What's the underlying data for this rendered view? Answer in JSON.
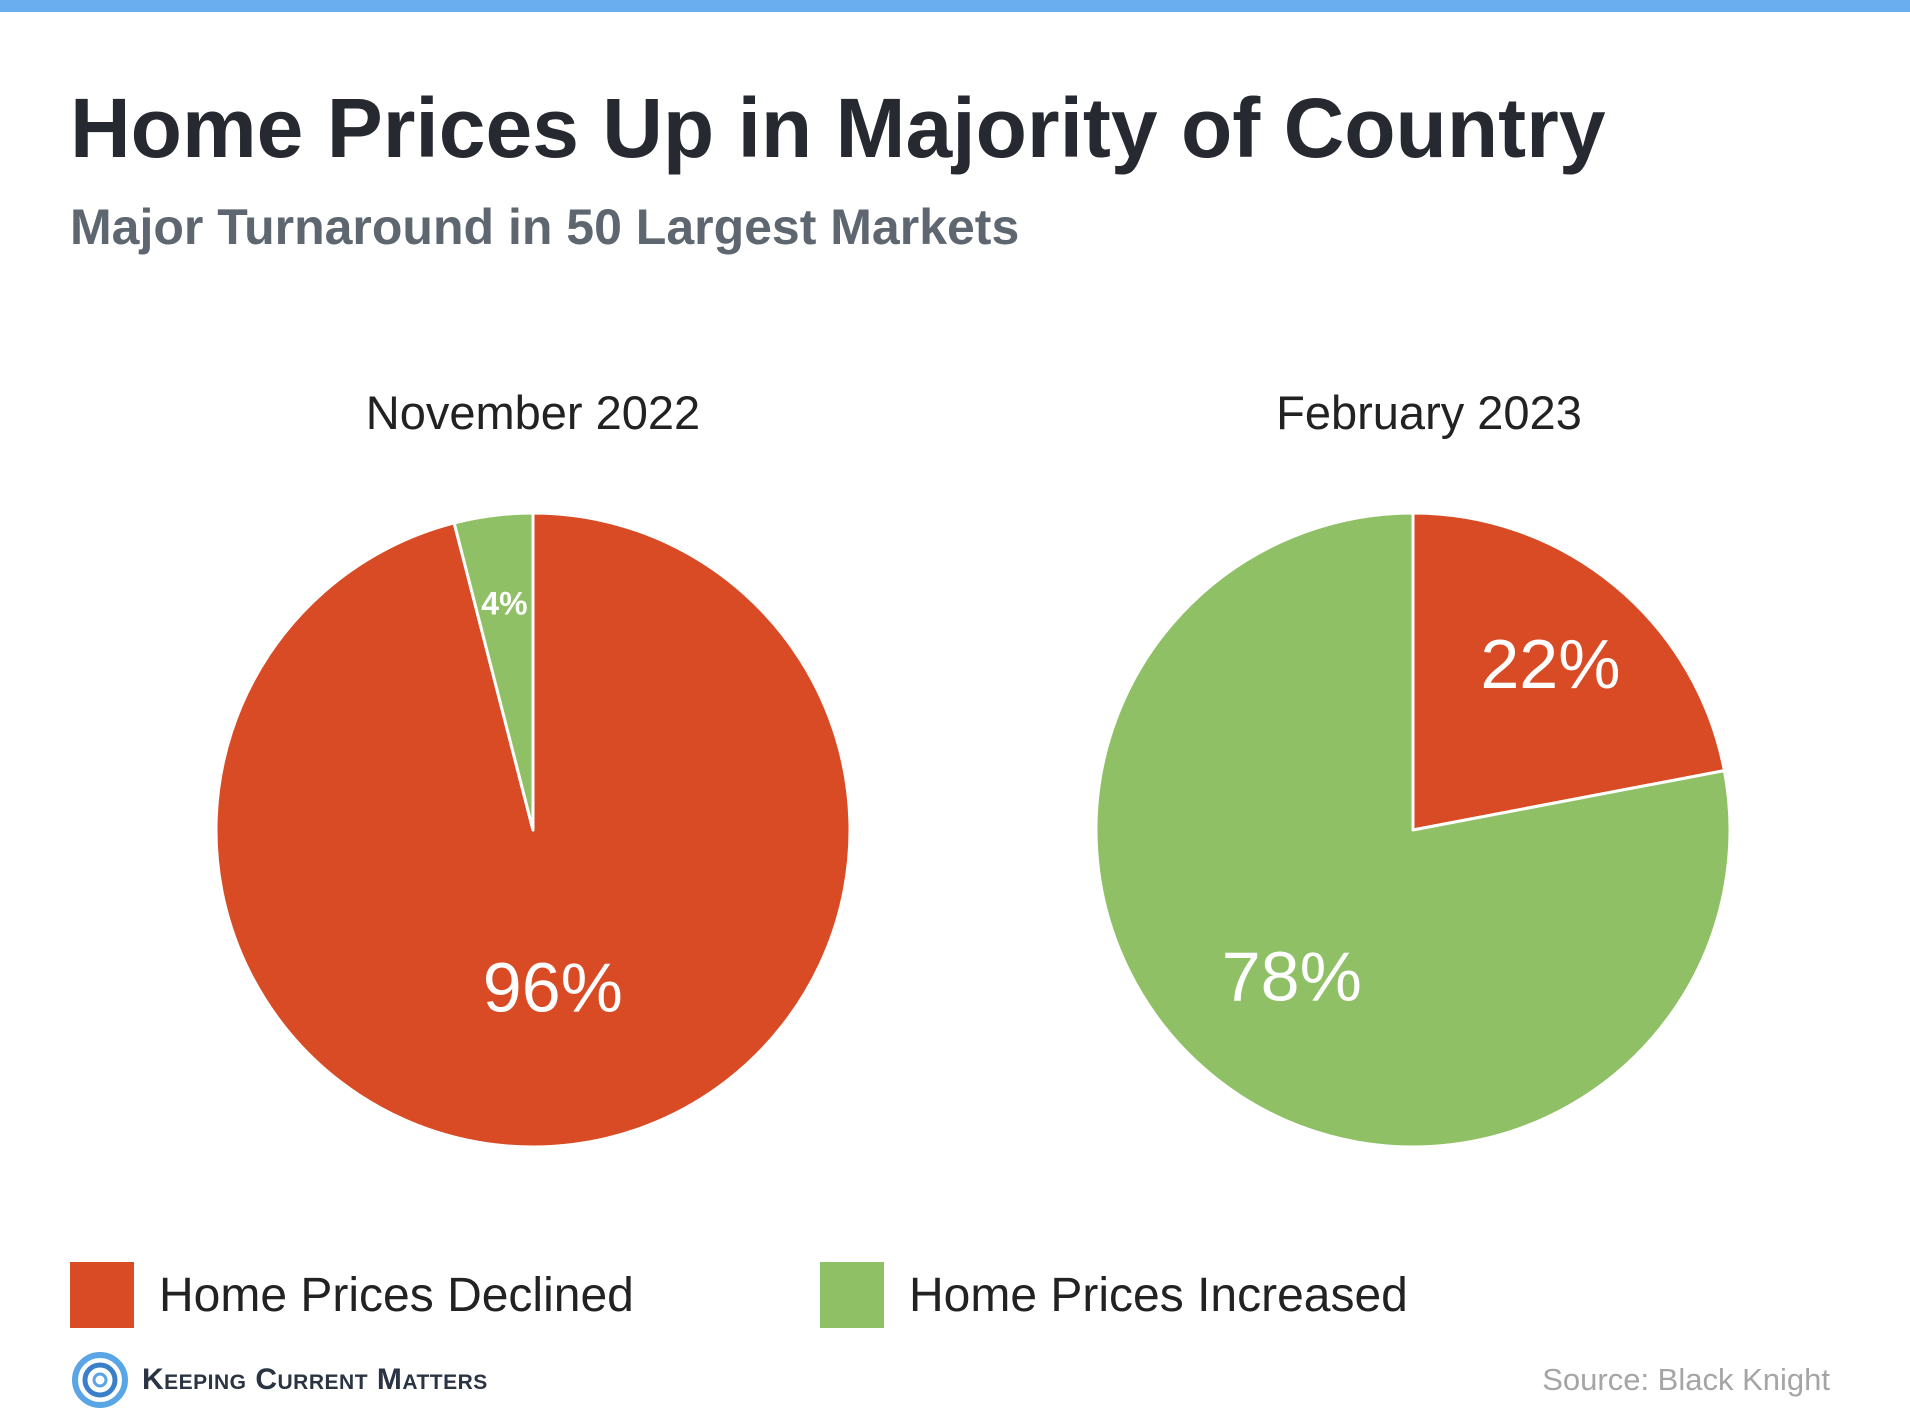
{
  "header": {
    "title": "Home Prices Up in Majority of Country",
    "subtitle": "Major Turnaround in 50 Largest Markets"
  },
  "colors": {
    "declined": "#D84B24",
    "increased": "#8FC066",
    "top_bar": "#6AAEEF"
  },
  "chart_data": [
    {
      "type": "pie",
      "title": "November 2022",
      "labels": [
        "Home Prices Declined",
        "Home Prices Increased"
      ],
      "values": [
        96,
        4
      ],
      "value_labels": [
        "96%",
        "4%"
      ]
    },
    {
      "type": "pie",
      "title": "February 2023",
      "labels": [
        "Home Prices Declined",
        "Home Prices Increased"
      ],
      "values": [
        22,
        78
      ],
      "value_labels": [
        "22%",
        "78%"
      ]
    }
  ],
  "legend": {
    "placement": "bottom",
    "items": [
      "Home Prices Declined",
      "Home Prices Increased"
    ]
  },
  "footer": {
    "brand": "Keeping Current Matters",
    "brand_icon": "swirl-logo-icon",
    "source": "Source: Black Knight"
  }
}
